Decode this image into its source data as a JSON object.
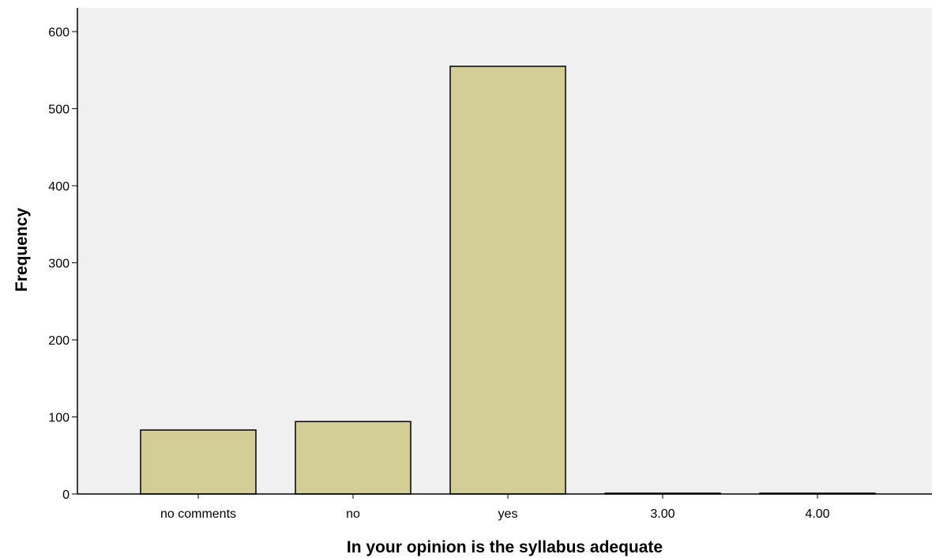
{
  "chart_data": {
    "type": "bar",
    "categories": [
      "no comments",
      "no",
      "yes",
      "3.00",
      "4.00"
    ],
    "values": [
      83,
      94,
      555,
      1,
      1
    ],
    "title": "",
    "xlabel": "In your opinion is the syllabus adequate",
    "ylabel": "Frequency",
    "ylim": [
      0,
      600
    ],
    "yticks": [
      "0",
      "100",
      "200",
      "300",
      "400",
      "500",
      "600"
    ],
    "grid": false,
    "colors": {
      "bar_fill": "#d3cd96",
      "bar_stroke": "#000000",
      "plot_bg": "#f0f0f0",
      "axis": "#000000"
    }
  }
}
